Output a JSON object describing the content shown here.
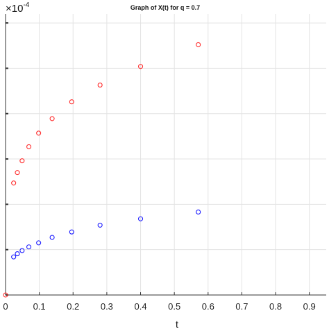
{
  "chart_data": {
    "type": "scatter",
    "title": "Graph of X(t) for q = 0.7",
    "xlabel": "t",
    "ylabel": "",
    "y_exponent_label": "×10",
    "y_exponent_power": "-4",
    "xlim": [
      0,
      0.95
    ],
    "ylim": [
      0,
      6.2
    ],
    "x_ticks": [
      "0",
      "0.1",
      "0.2",
      "0.3",
      "0.4",
      "0.5",
      "0.6",
      "0.7",
      "0.8",
      "0.9"
    ],
    "x_tick_values": [
      0,
      0.1,
      0.2,
      0.3,
      0.4,
      0.5,
      0.6,
      0.7,
      0.8,
      0.9
    ],
    "y_tick_values": [
      0,
      1,
      2,
      3,
      4,
      5,
      6
    ],
    "grid": true,
    "series": [
      {
        "color": "#ff2a2a",
        "marker": "circle-open",
        "x": [
          0.024,
          0.035,
          0.049,
          0.069,
          0.098,
          0.138,
          0.196,
          0.28,
          0.4,
          0.571
        ],
        "y": [
          2.47,
          2.7,
          2.96,
          3.27,
          3.57,
          3.89,
          4.26,
          4.63,
          5.04,
          5.52
        ]
      },
      {
        "color": "#1a1aff",
        "marker": "circle-open",
        "x": [
          0.024,
          0.035,
          0.049,
          0.069,
          0.098,
          0.138,
          0.196,
          0.28,
          0.4,
          0.571
        ],
        "y": [
          0.84,
          0.91,
          0.98,
          1.06,
          1.15,
          1.27,
          1.39,
          1.54,
          1.68,
          1.83
        ]
      },
      {
        "color": "#ff2a2a",
        "marker": "circle-open",
        "x": [
          0
        ],
        "y": [
          0
        ]
      }
    ]
  }
}
